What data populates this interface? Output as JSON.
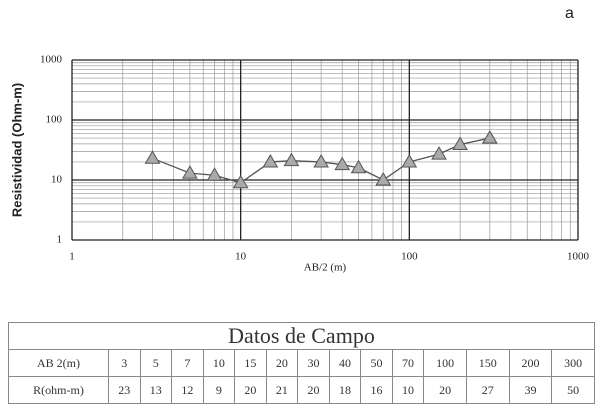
{
  "panel_label": "a",
  "chart_data": {
    "type": "line",
    "ylabel": "Resistividad (Ohm-m)",
    "xlabel": "AB/2 (m)",
    "x": [
      3,
      5,
      7,
      10,
      15,
      20,
      30,
      40,
      50,
      70,
      100,
      150,
      200,
      300
    ],
    "values": [
      23,
      13,
      12,
      9,
      20,
      21,
      20,
      18,
      16,
      10,
      20,
      27,
      39,
      50
    ],
    "color": "#555555",
    "xlog": true,
    "ylog": true,
    "grid": true,
    "xlim": [
      1,
      1000
    ],
    "ylim": [
      1,
      1000
    ],
    "xticks": [
      1,
      10,
      100,
      1000
    ],
    "yticks": [
      1,
      10,
      100,
      1000
    ]
  },
  "table": {
    "title": "Datos de Campo",
    "rows": [
      {
        "label": "AB 2(m)",
        "values": [
          3,
          5,
          7,
          10,
          15,
          20,
          30,
          40,
          50,
          70,
          100,
          150,
          200,
          300
        ]
      },
      {
        "label": "R(ohm-m)",
        "values": [
          23,
          13,
          12,
          9,
          20,
          21,
          20,
          18,
          16,
          10,
          20,
          27,
          39,
          50
        ]
      }
    ]
  }
}
